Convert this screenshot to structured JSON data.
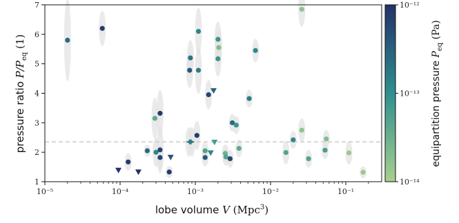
{
  "chart_data": {
    "type": "scatter",
    "title": "",
    "xlabel": "lobe volume V (Mpc³)",
    "ylabel": "pressure ratio P/P_eq (1)",
    "xscale": "log",
    "xlim": [
      1e-05,
      0.3
    ],
    "ylim": [
      1,
      7
    ],
    "x_ticks": [
      "10⁻⁵",
      "10⁻⁴",
      "10⁻³",
      "10⁻²",
      "10⁻¹"
    ],
    "y_ticks": [
      "1",
      "2",
      "3",
      "4",
      "5",
      "6",
      "7"
    ],
    "grid": false,
    "reference_line": {
      "y": 2.35,
      "style": "dashed",
      "color": "#cccccc"
    },
    "colorbar": {
      "label": "equipartition pressure P_eq (Pa)",
      "scale": "log",
      "range": [
        1e-14,
        1e-12
      ],
      "ticks": [
        "10⁻¹²",
        "10⁻¹³",
        "10⁻¹⁴"
      ],
      "colors": [
        "#a8d08d",
        "#2f8f8f",
        "#23326a"
      ]
    },
    "points": [
      {
        "x": 2e-05,
        "y": 5.8,
        "c": -12.6,
        "m": "o",
        "ey": 1.4
      },
      {
        "x": 5.8e-05,
        "y": 6.2,
        "c": -12.1,
        "m": "o",
        "ey": 0.6
      },
      {
        "x": 0.000128,
        "y": 1.67,
        "c": -12.1,
        "m": "o",
        "ey": 0.3
      },
      {
        "x": 9.5e-05,
        "y": 1.38,
        "c": -12.0,
        "m": "v",
        "ey": 0
      },
      {
        "x": 0.000175,
        "y": 1.32,
        "c": -12.0,
        "m": "v",
        "ey": 0
      },
      {
        "x": 0.00023,
        "y": 2.05,
        "c": -12.6,
        "m": "o",
        "ey": 0.2
      },
      {
        "x": 0.00029,
        "y": 3.15,
        "c": -13.4,
        "m": "o",
        "ey": 0.7
      },
      {
        "x": 0.0003,
        "y": 2.0,
        "c": -12.9,
        "m": "o",
        "ey": 0.5
      },
      {
        "x": 0.00034,
        "y": 3.32,
        "c": -12.1,
        "m": "o",
        "ey": 0.8
      },
      {
        "x": 0.00034,
        "y": 2.08,
        "c": -12.2,
        "m": "o",
        "ey": 0.8
      },
      {
        "x": 0.00034,
        "y": 1.82,
        "c": -12.2,
        "m": "o",
        "ey": 0.4
      },
      {
        "x": 0.00045,
        "y": 1.33,
        "c": -12.1,
        "m": "o",
        "ey": 0.2
      },
      {
        "x": 0.00047,
        "y": 1.82,
        "c": -12.4,
        "m": "v",
        "ey": 0
      },
      {
        "x": 0.00084,
        "y": 4.78,
        "c": -12.4,
        "m": "o",
        "ey": 0.6
      },
      {
        "x": 0.00086,
        "y": 5.2,
        "c": -12.7,
        "m": "o",
        "ey": 0.6
      },
      {
        "x": 0.00082,
        "y": 2.35,
        "c": -12.8,
        "m": "<",
        "ey": 0.5
      },
      {
        "x": 0.0009,
        "y": 2.35,
        "c": -12.8,
        "m": ">",
        "ey": 0.5
      },
      {
        "x": 0.0011,
        "y": 6.1,
        "c": -12.9,
        "m": "o",
        "ey": 0.8
      },
      {
        "x": 0.0011,
        "y": 4.78,
        "c": -12.8,
        "m": "o",
        "ey": 0.8
      },
      {
        "x": 0.00105,
        "y": 2.57,
        "c": -12.1,
        "m": "o",
        "ey": 0.5
      },
      {
        "x": 0.00135,
        "y": 2.05,
        "c": -13.3,
        "m": "o",
        "ey": 0.3
      },
      {
        "x": 0.00135,
        "y": 1.82,
        "c": -12.4,
        "m": "o",
        "ey": 0.3
      },
      {
        "x": 0.0015,
        "y": 3.95,
        "c": -12.2,
        "m": "o",
        "ey": 0.5
      },
      {
        "x": 0.0016,
        "y": 1.97,
        "c": -12.9,
        "m": "v",
        "ey": 0
      },
      {
        "x": 0.00175,
        "y": 4.08,
        "c": -12.5,
        "m": "v",
        "ey": 0
      },
      {
        "x": 0.0018,
        "y": 2.33,
        "c": -13.2,
        "m": "v",
        "ey": 0
      },
      {
        "x": 0.002,
        "y": 5.83,
        "c": -13.1,
        "m": "o",
        "ey": 0.6
      },
      {
        "x": 0.00205,
        "y": 5.55,
        "c": -13.7,
        "m": "o",
        "ey": 0.6
      },
      {
        "x": 0.002,
        "y": 5.17,
        "c": -13.1,
        "m": "o",
        "ey": 0.6
      },
      {
        "x": 0.0025,
        "y": 1.96,
        "c": -13.5,
        "m": "o",
        "ey": 0.3
      },
      {
        "x": 0.00255,
        "y": 1.84,
        "c": -13.3,
        "m": "o",
        "ey": 0.3
      },
      {
        "x": 0.0029,
        "y": 1.78,
        "c": -12.2,
        "m": "o",
        "ey": 0.3
      },
      {
        "x": 0.0031,
        "y": 3.0,
        "c": -12.6,
        "m": "o",
        "ey": 0.3
      },
      {
        "x": 0.0035,
        "y": 2.92,
        "c": -13.1,
        "m": "o",
        "ey": 0.3
      },
      {
        "x": 0.0038,
        "y": 2.13,
        "c": -13.4,
        "m": "o",
        "ey": 0.3
      },
      {
        "x": 0.0052,
        "y": 3.82,
        "c": -12.8,
        "m": "o",
        "ey": 0.3
      },
      {
        "x": 0.0063,
        "y": 5.45,
        "c": -12.9,
        "m": "o",
        "ey": 0.4
      },
      {
        "x": 0.016,
        "y": 1.99,
        "c": -13.3,
        "m": "o",
        "ey": 0.4
      },
      {
        "x": 0.02,
        "y": 2.42,
        "c": -12.9,
        "m": "o",
        "ey": 0.3
      },
      {
        "x": 0.026,
        "y": 6.85,
        "c": -13.8,
        "m": "o",
        "ey": 0.6
      },
      {
        "x": 0.026,
        "y": 2.75,
        "c": -13.8,
        "m": "o",
        "ey": 0.4
      },
      {
        "x": 0.032,
        "y": 1.78,
        "c": -13.3,
        "m": "o",
        "ey": 0.3
      },
      {
        "x": 0.055,
        "y": 2.45,
        "c": -13.7,
        "m": "o",
        "ey": 0.3
      },
      {
        "x": 0.053,
        "y": 2.07,
        "c": -13.2,
        "m": "o",
        "ey": 0.3
      },
      {
        "x": 0.11,
        "y": 1.98,
        "c": -13.9,
        "m": "o",
        "ey": 0.4
      },
      {
        "x": 0.17,
        "y": 1.32,
        "c": -13.9,
        "m": "o",
        "ey": 0.2
      }
    ]
  }
}
